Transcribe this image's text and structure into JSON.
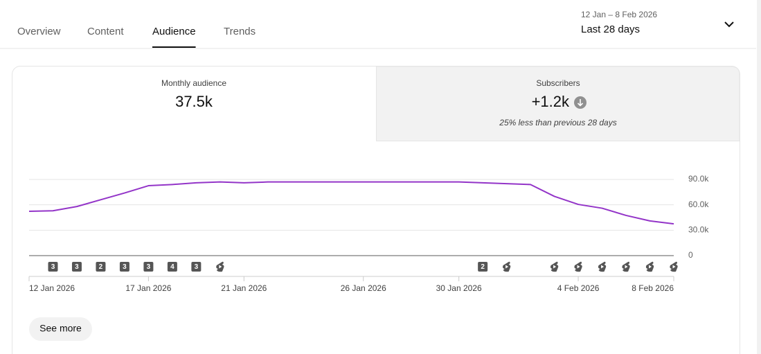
{
  "tabs": {
    "items": [
      "Overview",
      "Content",
      "Audience",
      "Trends"
    ],
    "active": 2
  },
  "date_range": {
    "range": "12 Jan – 8 Feb 2026",
    "label": "Last 28 days"
  },
  "metrics": [
    {
      "title": "Monthly audience",
      "value": "37.5k"
    },
    {
      "title": "Subscribers",
      "value": "+1.2k",
      "note": "25% less than previous 28 days"
    }
  ],
  "chart_data": {
    "type": "line",
    "categories": [
      "12 Jan 2026",
      null,
      null,
      null,
      null,
      "17 Jan 2026",
      null,
      null,
      null,
      "21 Jan 2026",
      null,
      null,
      null,
      null,
      "26 Jan 2026",
      null,
      null,
      null,
      "30 Jan 2026",
      null,
      null,
      null,
      null,
      "4 Feb 2026",
      null,
      null,
      null,
      "8 Feb 2026"
    ],
    "series": [
      {
        "name": "Monthly audience",
        "color": "#9334c8",
        "values": [
          52400,
          53000,
          58000,
          66000,
          74000,
          82600,
          84000,
          86000,
          87000,
          86000,
          87000,
          87000,
          87000,
          87000,
          87000,
          87000,
          87000,
          87000,
          87000,
          86000,
          85000,
          84000,
          70000,
          60500,
          56000,
          47500,
          41000,
          37500
        ]
      }
    ],
    "ylim": [
      0,
      90000
    ],
    "yticks": [
      0,
      {
        "value": 30000,
        "label": "30.0k"
      },
      {
        "value": 60000,
        "label": "60.0k"
      },
      {
        "value": 90000,
        "label": "90.0k"
      }
    ],
    "grid": true,
    "upload_counts": [
      null,
      3,
      3,
      2,
      3,
      3,
      4,
      3,
      null,
      null,
      null,
      null,
      null,
      null,
      null,
      null,
      null,
      null,
      null,
      2,
      null,
      null,
      null,
      null,
      null,
      null,
      null,
      null
    ],
    "shorts_uploads": [
      false,
      false,
      false,
      false,
      false,
      false,
      false,
      false,
      true,
      false,
      false,
      false,
      false,
      false,
      false,
      false,
      false,
      false,
      false,
      false,
      true,
      false,
      true,
      true,
      true,
      true,
      true,
      true
    ]
  },
  "button": "See more"
}
